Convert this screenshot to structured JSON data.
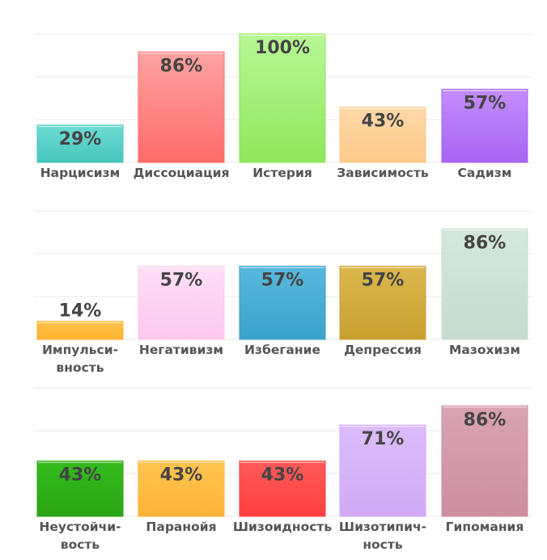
{
  "chart_data": [
    {
      "type": "bar",
      "ylim": [
        0,
        100
      ],
      "grid": true,
      "categories": [
        "Нарцисизм",
        "Диссоциация",
        "Истерия",
        "Зависимость",
        "Садизм"
      ],
      "category_lines": [
        [
          "Нарцисизм"
        ],
        [
          "Диссоциация"
        ],
        [
          "Истерия"
        ],
        [
          "Зависимость"
        ],
        [
          "Садизм"
        ]
      ],
      "values": [
        29,
        86,
        100,
        43,
        57
      ],
      "value_labels": [
        "29%",
        "86%",
        "100%",
        "43%",
        "57%"
      ],
      "colors": [
        [
          "#6fdcd4",
          "#45c6bc"
        ],
        [
          "#ffa3a3",
          "#ff6b6b"
        ],
        [
          "#b9f796",
          "#8fe65c"
        ],
        [
          "#ffd9a8",
          "#ffc98b"
        ],
        [
          "#c48dfb",
          "#a764f2"
        ]
      ]
    },
    {
      "type": "bar",
      "ylim": [
        0,
        100
      ],
      "grid": true,
      "categories": [
        "Импульси-вность",
        "Негативизм",
        "Избегание",
        "Депрессия",
        "Мазохизм"
      ],
      "category_lines": [
        [
          "Импульси-",
          "вность"
        ],
        [
          "Негативизм"
        ],
        [
          "Избегание"
        ],
        [
          "Депрессия"
        ],
        [
          "Мазохизм"
        ]
      ],
      "values": [
        14,
        57,
        57,
        57,
        86
      ],
      "value_labels": [
        "14%",
        "57%",
        "57%",
        "57%",
        "86%"
      ],
      "colors": [
        [
          "#ffc24a",
          "#ffb22f"
        ],
        [
          "#ffdff6",
          "#fbc8ec"
        ],
        [
          "#5ab8de",
          "#3aa2c9"
        ],
        [
          "#dbb84e",
          "#c8a030"
        ],
        [
          "#d4e7dd",
          "#c5dccf"
        ]
      ]
    },
    {
      "type": "bar",
      "ylim": [
        0,
        100
      ],
      "grid": true,
      "categories": [
        "Неустойчи-вость",
        "Паранойя",
        "Шизоидность",
        "Шизотипич-ность",
        "Гипомания"
      ],
      "category_lines": [
        [
          "Неустойчи-",
          "вость"
        ],
        [
          "Паранойя"
        ],
        [
          "Шизоидность"
        ],
        [
          "Шизотипич-",
          "ность"
        ],
        [
          "Гипомания"
        ]
      ],
      "values": [
        43,
        43,
        43,
        71,
        86
      ],
      "value_labels": [
        "43%",
        "43%",
        "43%",
        "71%",
        "86%"
      ],
      "colors": [
        [
          "#34bc1d",
          "#2aa413"
        ],
        [
          "#ffc550",
          "#ffb238"
        ],
        [
          "#ff5a5a",
          "#ff3f3f"
        ],
        [
          "#dcbdfb",
          "#cfaaf6"
        ],
        [
          "#d9a3b3",
          "#cd8fa0"
        ]
      ]
    }
  ]
}
